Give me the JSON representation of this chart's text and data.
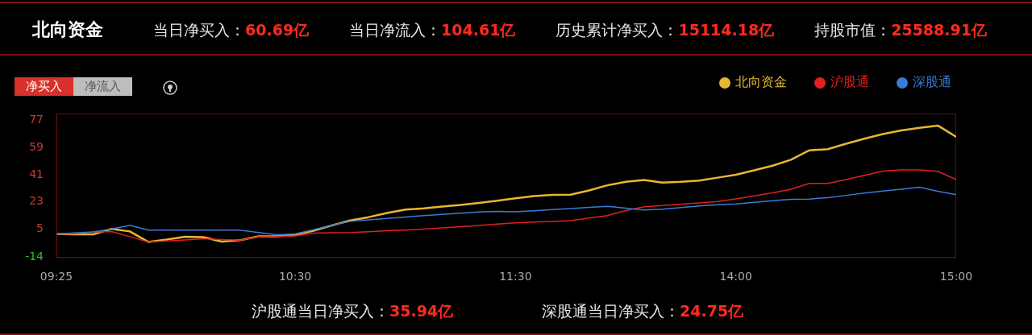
{
  "chart_data": {
    "type": "line",
    "title": "北向资金",
    "annotations": [
      "当日净买入：60.69亿",
      "当日净流入：104.61亿",
      "历史累计净买入：15114.18亿",
      "持股市值：25588.91亿",
      "净买入",
      "净流入",
      "沪股通当日净买入：35.94亿",
      "深股通当日净买入：24.75亿"
    ],
    "categories": [
      "09:25",
      null,
      null,
      null,
      null,
      null,
      null,
      null,
      null,
      null,
      null,
      null,
      null,
      "10:30",
      null,
      null,
      null,
      null,
      null,
      null,
      null,
      null,
      null,
      null,
      null,
      "11:30",
      null,
      null,
      null,
      null,
      null,
      null,
      null,
      null,
      null,
      null,
      null,
      "14:00",
      null,
      null,
      null,
      null,
      null,
      null,
      null,
      null,
      null,
      null,
      null,
      "15:00"
    ],
    "series": [
      {
        "name": "北向资金",
        "color": "#e8b730",
        "values": [
          0.8,
          0.5,
          0.5,
          4.2,
          2.5,
          -4.5,
          -2.9,
          -1.0,
          -1.3,
          -4.3,
          -3.4,
          -0.8,
          -0.8,
          0.3,
          3.0,
          6.5,
          9.8,
          12.0,
          14.8,
          17.0,
          17.8,
          19.0,
          20.1,
          21.5,
          23.0,
          24.5,
          26.0,
          26.8,
          27.0,
          29.8,
          33.2,
          35.5,
          36.8,
          35.0,
          35.5,
          36.3,
          38.3,
          40.2,
          43.2,
          46.3,
          50.2,
          56.5,
          57.3,
          60.9,
          64.2,
          67.3,
          69.7,
          71.5,
          73.0,
          65.5
        ]
      },
      {
        "name": "沪股通",
        "color": "#e02020",
        "values": [
          0.8,
          1.0,
          2.0,
          2.4,
          -1.0,
          -4.5,
          -3.9,
          -3.2,
          -2.4,
          -2.9,
          -3.4,
          -1.0,
          -0.9,
          -0.5,
          1.3,
          1.6,
          1.8,
          2.3,
          2.9,
          3.4,
          4.0,
          4.8,
          5.7,
          6.5,
          7.4,
          8.2,
          8.7,
          9.2,
          9.7,
          11.4,
          13.0,
          16.4,
          18.9,
          19.7,
          20.6,
          21.5,
          22.4,
          24.2,
          26.1,
          28.2,
          30.6,
          34.5,
          34.5,
          37.0,
          39.8,
          42.6,
          43.4,
          43.4,
          42.5,
          37.0
        ]
      },
      {
        "name": "深股通",
        "color": "#3a7bd5",
        "values": [
          0.8,
          1.5,
          2.2,
          4.0,
          6.6,
          3.4,
          3.4,
          3.4,
          3.4,
          3.4,
          3.4,
          1.8,
          0.3,
          0.8,
          3.6,
          6.7,
          9.2,
          10.2,
          11.2,
          12.1,
          13.0,
          13.8,
          14.6,
          15.5,
          15.8,
          15.6,
          16.3,
          17.0,
          17.7,
          18.5,
          19.2,
          18.0,
          16.8,
          17.3,
          18.4,
          19.5,
          20.3,
          20.8,
          21.9,
          22.9,
          23.9,
          24.0,
          25.0,
          26.5,
          28.0,
          29.4,
          30.6,
          31.9,
          29.2,
          27.0
        ]
      }
    ],
    "ylim": [
      -15,
      81
    ],
    "yticks": [
      -14,
      5,
      23,
      41,
      59,
      77
    ],
    "grid": false,
    "legend": "top right",
    "marker": "none",
    "line_style": "solid"
  }
}
